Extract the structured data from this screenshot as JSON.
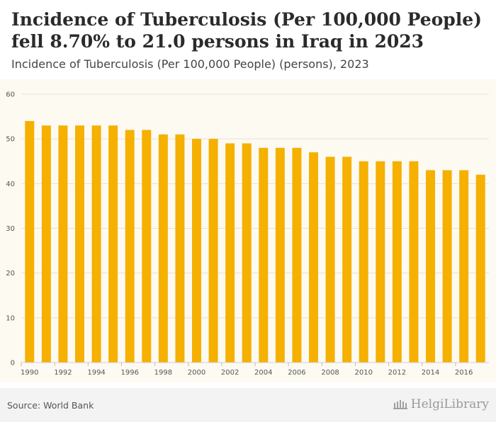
{
  "header": {
    "title": "Incidence of Tuberculosis (Per 100,000 People) fell 8.70% to 21.0 persons in Iraq in 2023",
    "subtitle": "Incidence of Tuberculosis (Per 100,000 People) (persons), 2023"
  },
  "footer": {
    "source": "Source: World Bank",
    "brand": "HelgiLibrary"
  },
  "colors": {
    "bar": "#f5b000",
    "grid": "#e6e1d6",
    "plot_bg": "#fdfaf2"
  },
  "chart_data": {
    "type": "bar",
    "title": "Incidence of Tuberculosis (Per 100,000 People) (persons), 2023",
    "xlabel": "",
    "ylabel": "",
    "ylim": [
      0,
      60
    ],
    "yticks": [
      0,
      10,
      20,
      30,
      40,
      50,
      60
    ],
    "categories": [
      "1990",
      "1991",
      "1992",
      "1993",
      "1994",
      "1995",
      "1996",
      "1997",
      "1998",
      "1999",
      "2000",
      "2001",
      "2002",
      "2003",
      "2004",
      "2005",
      "2006",
      "2007",
      "2008",
      "2009",
      "2010",
      "2011",
      "2012",
      "2013",
      "2014",
      "2015",
      "2016",
      "2017"
    ],
    "xtick_labels": [
      "1990",
      "1992",
      "1994",
      "1996",
      "1998",
      "2000",
      "2002",
      "2004",
      "2006",
      "2008",
      "2010",
      "2012",
      "2014",
      "2016"
    ],
    "values": [
      54,
      53,
      53,
      53,
      53,
      53,
      52,
      52,
      51,
      51,
      50,
      50,
      49,
      49,
      48,
      48,
      48,
      47,
      46,
      46,
      45,
      45,
      45,
      45,
      43,
      43,
      43,
      42
    ],
    "grid": true
  }
}
